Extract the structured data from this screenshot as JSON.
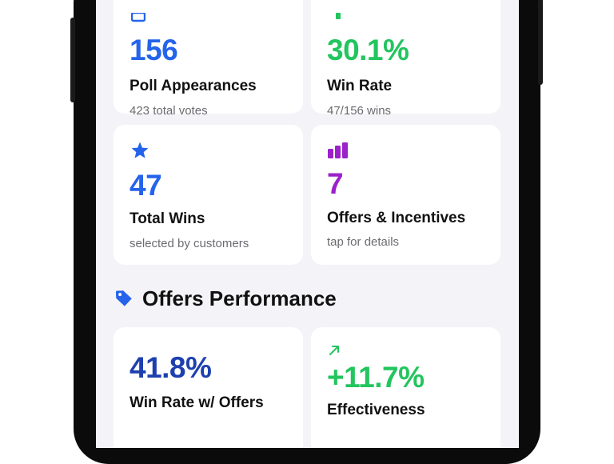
{
  "stats": [
    {
      "value": "156",
      "label": "Poll Appearances",
      "sub": "423 total votes",
      "icon": "poll-icon"
    },
    {
      "value": "30.1%",
      "label": "Win Rate",
      "sub": "47/156 wins",
      "icon": "trend-icon"
    },
    {
      "value": "47",
      "label": "Total Wins",
      "sub": "selected by customers",
      "icon": "star-icon"
    },
    {
      "value": "7",
      "label": "Offers & Incentives",
      "sub": "tap for details",
      "icon": "bar-chart-icon"
    }
  ],
  "offers_section": {
    "title": "Offers Performance",
    "icon": "tag-icon",
    "cards": [
      {
        "value": "41.8%",
        "label": "Win Rate w/ Offers"
      },
      {
        "value": "+11.7%",
        "label": "Effectiveness",
        "icon": "arrow-up-right-icon"
      }
    ]
  },
  "colors": {
    "blue": "#2563eb",
    "green": "#22c55e",
    "purple": "#9b21c9",
    "navy": "#1e40af",
    "background": "#f4f4f8"
  }
}
